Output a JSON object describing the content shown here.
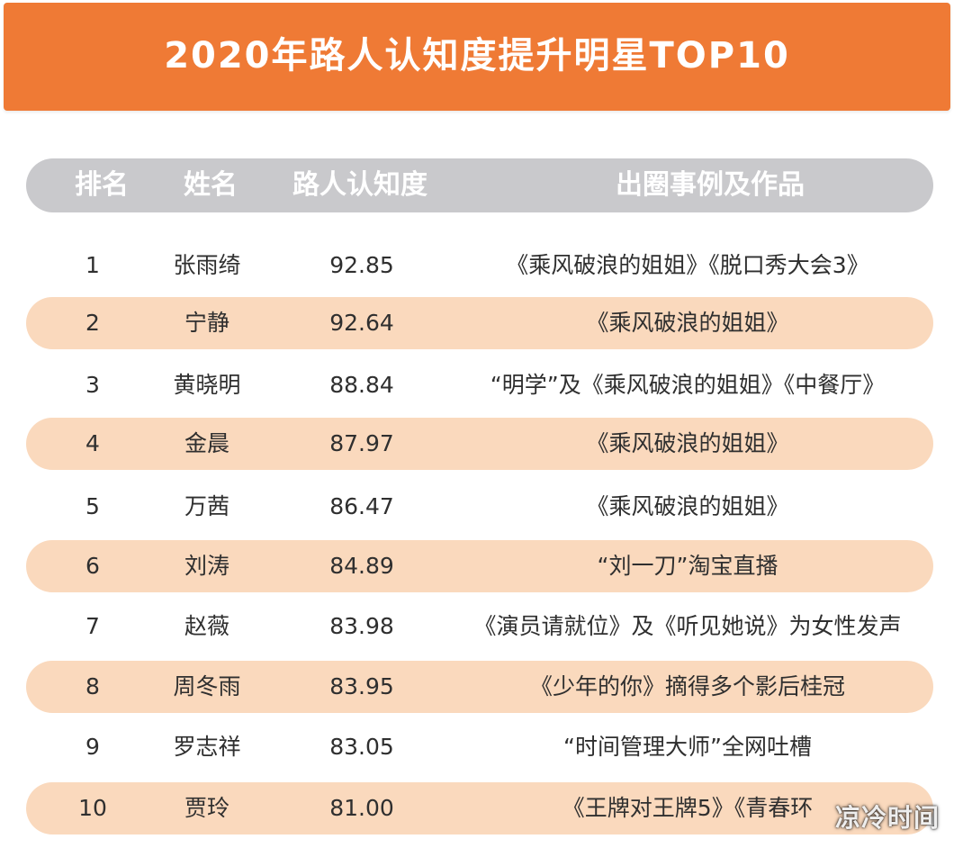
{
  "title": "2020年路人认知度提升明星TOP10",
  "header": {
    "rank": "排名",
    "name": "姓名",
    "score": "路人认知度",
    "event": "出圈事例及作品"
  },
  "rows": [
    {
      "rank": "1",
      "name": "张雨绮",
      "score": "92.85",
      "event": "《乘风破浪的姐姐》《脱口秀大会3》"
    },
    {
      "rank": "2",
      "name": "宁静",
      "score": "92.64",
      "event": "《乘风破浪的姐姐》"
    },
    {
      "rank": "3",
      "name": "黄晓明",
      "score": "88.84",
      "event": "“明学”及《乘风破浪的姐姐》《中餐厅》"
    },
    {
      "rank": "4",
      "name": "金晨",
      "score": "87.97",
      "event": "《乘风破浪的姐姐》"
    },
    {
      "rank": "5",
      "name": "万茜",
      "score": "86.47",
      "event": "《乘风破浪的姐姐》"
    },
    {
      "rank": "6",
      "name": "刘涛",
      "score": "84.89",
      "event": "“刘一刀”淘宝直播"
    },
    {
      "rank": "7",
      "name": "赵薇",
      "score": "83.98",
      "event": "《演员请就位》及《听见她说》为女性发声"
    },
    {
      "rank": "8",
      "name": "周冬雨",
      "score": "83.95",
      "event": "《少年的你》摘得多个影后桂冠"
    },
    {
      "rank": "9",
      "name": "罗志祥",
      "score": "83.05",
      "event": "“时间管理大师”全网吐槽"
    },
    {
      "rank": "10",
      "name": "贾玲",
      "score": "81.00",
      "event": "《王牌对王牌5》《青春环"
    }
  ],
  "watermark": "凉冷时间",
  "colors": {
    "banner": "#ef7a35",
    "header_pill": "#c9c9cc",
    "alt_row": "#fad9bd",
    "text": "#2f2f2f"
  }
}
